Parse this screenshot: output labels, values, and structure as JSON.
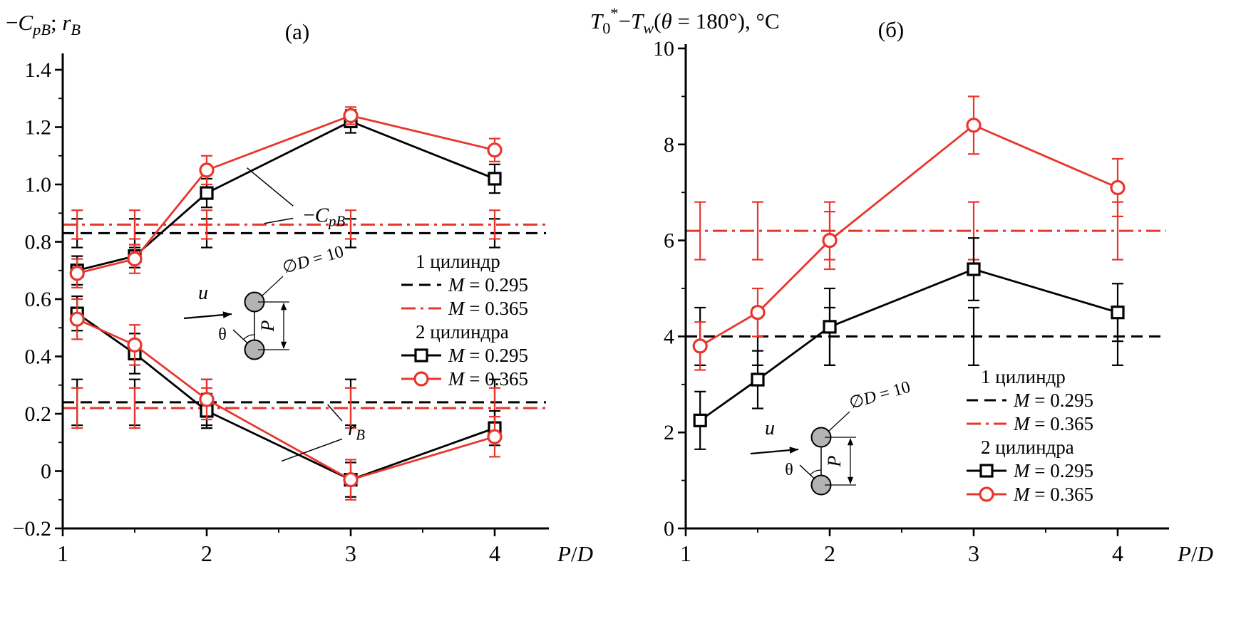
{
  "colors": {
    "black": "#000000",
    "red": "#e8362d",
    "cylinder_fill": "#b3b3b3",
    "background": "#ffffff"
  },
  "legend": {
    "group1": "1 цилиндр",
    "group2": "2 цилиндра",
    "entries": [
      {
        "group": 1,
        "style": "dashed",
        "color": "black",
        "label_text": "M = 0.295",
        "label": [
          {
            "t": "M",
            "i": 1
          },
          {
            "t": " = 0.295"
          }
        ]
      },
      {
        "group": 1,
        "style": "dashdot",
        "color": "red",
        "label_text": "M = 0.365",
        "label": [
          {
            "t": "M",
            "i": 1
          },
          {
            "t": " = 0.365"
          }
        ]
      },
      {
        "group": 2,
        "marker": "square",
        "color": "black",
        "label_text": "M = 0.295",
        "label": [
          {
            "t": "M",
            "i": 1
          },
          {
            "t": " = 0.295"
          }
        ]
      },
      {
        "group": 2,
        "marker": "circle",
        "color": "red",
        "label_text": "M = 0.365",
        "label": [
          {
            "t": "M",
            "i": 1
          },
          {
            "t": " = 0.365"
          }
        ]
      }
    ]
  },
  "inset_labels": {
    "u": [
      {
        "t": "u",
        "i": 1
      }
    ],
    "theta": [
      {
        "t": "θ"
      }
    ],
    "p": [
      {
        "t": "P",
        "i": 1
      }
    ],
    "d": [
      {
        "t": "∅"
      },
      {
        "t": "D",
        "i": 1
      },
      {
        "t": " = 10"
      }
    ],
    "d_text": "∅D = 10",
    "u_text": "u",
    "theta_text": "θ",
    "p_text": "P"
  },
  "chart_data": [
    {
      "id": "a",
      "type": "line",
      "title": "(а)",
      "ylabel": "−CpB; rB",
      "ylabel_segs": [
        {
          "t": "−"
        },
        {
          "t": "C",
          "i": 1
        },
        {
          "t": "pB",
          "sub": 1,
          "i": 1
        },
        {
          "t": "; "
        },
        {
          "t": "r",
          "i": 1
        },
        {
          "t": "B",
          "sub": 1,
          "i": 1
        }
      ],
      "xlabel": "P/D",
      "xlabel_segs": [
        {
          "t": "P",
          "i": 1
        },
        {
          "t": "/"
        },
        {
          "t": "D",
          "i": 1
        }
      ],
      "xlim": [
        1,
        4.38
      ],
      "ylim": [
        -0.2,
        1.4
      ],
      "xticks": [
        1,
        2,
        3,
        4
      ],
      "xtick_labels": [
        "1",
        "2",
        "3",
        "4"
      ],
      "xminor": [
        1.5,
        2.5,
        3.5
      ],
      "yticks": [
        -0.2,
        0,
        0.2,
        0.4,
        0.6,
        0.8,
        1.0,
        1.2,
        1.4
      ],
      "ytick_labels": [
        "−0.2",
        "0",
        "0.2",
        "0.4",
        "0.6",
        "0.8",
        "1.0",
        "1.2",
        "1.4"
      ],
      "yminor": [
        -0.1,
        0.1,
        0.3,
        0.5,
        0.7,
        0.9,
        1.1,
        1.3
      ],
      "grid": false,
      "legend_position": "right-center",
      "x": [
        1.1,
        1.5,
        2,
        3,
        4
      ],
      "series": [
        {
          "key": "cpb-2cyl-m0295",
          "name": "−CpB, 2 цилиндра, M = 0.295",
          "color": "black",
          "marker": "square",
          "values": [
            0.7,
            0.75,
            0.97,
            1.22,
            1.02
          ],
          "err": [
            0.05,
            0.04,
            0.05,
            0.04,
            0.05
          ]
        },
        {
          "key": "cpb-2cyl-m0365",
          "name": "−CpB, 2 цилиндра, M = 0.365",
          "color": "red",
          "marker": "circle",
          "values": [
            0.69,
            0.74,
            1.05,
            1.24,
            1.12
          ],
          "err": [
            0.05,
            0.05,
            0.05,
            0.03,
            0.04
          ]
        },
        {
          "key": "rb-2cyl-m0295",
          "name": "rB, 2 цилиндра, M = 0.295",
          "color": "black",
          "marker": "square",
          "values": [
            0.55,
            0.41,
            0.21,
            -0.03,
            0.15
          ],
          "err": [
            0.06,
            0.07,
            0.06,
            0.06,
            0.06
          ]
        },
        {
          "key": "rb-2cyl-m0365",
          "name": "rB, 2 цилиндра, M = 0.365",
          "color": "red",
          "marker": "circle",
          "values": [
            0.53,
            0.44,
            0.25,
            -0.03,
            0.12
          ],
          "err": [
            0.07,
            0.07,
            0.07,
            0.07,
            0.07
          ]
        }
      ],
      "hlines": [
        {
          "key": "cpb-1cyl-m0295",
          "name": "−CpB, 1 цилиндр, M = 0.295",
          "color": "black",
          "style": "dashed",
          "y": 0.83,
          "err": 0.05
        },
        {
          "key": "cpb-1cyl-m0365",
          "name": "−CpB, 1 цилиндр, M = 0.365",
          "color": "red",
          "style": "dashdot",
          "y": 0.86,
          "err": 0.05
        },
        {
          "key": "rb-1cyl-m0295",
          "name": "rB, 1 цилиндр, M = 0.295",
          "color": "black",
          "style": "dashed",
          "y": 0.24,
          "err": 0.08
        },
        {
          "key": "rb-1cyl-m0365",
          "name": "rB, 1 цилиндр, M = 0.365",
          "color": "red",
          "style": "dashdot",
          "y": 0.22,
          "err": 0.07
        }
      ],
      "annotations": [
        {
          "text": "−CpB",
          "segs": [
            {
              "t": "−"
            },
            {
              "t": "C",
              "i": 1
            },
            {
              "t": "pB",
              "sub": 1,
              "i": 1
            }
          ],
          "x": 2.67,
          "y": 0.87,
          "leaders": [
            [
              2.6,
              0.925,
              2.28,
              1.058
            ],
            [
              2.6,
              0.882,
              2.4,
              0.864
            ]
          ]
        },
        {
          "text": "rB",
          "segs": [
            {
              "t": "r",
              "i": 1
            },
            {
              "t": "B",
              "sub": 1,
              "i": 1
            }
          ],
          "x": 2.98,
          "y": 0.125,
          "leaders": [
            [
              2.94,
              0.175,
              2.84,
              0.232
            ],
            [
              2.94,
              0.112,
              2.52,
              0.035
            ]
          ]
        }
      ]
    },
    {
      "id": "b",
      "type": "line",
      "title": "(б)",
      "ylabel": "T0*−Tw(θ = 180°), °C",
      "ylabel_segs": [
        {
          "t": "T",
          "i": 1
        },
        {
          "t": "0",
          "sub": 1
        },
        {
          "t": "*",
          "sup": 1
        },
        {
          "t": "−"
        },
        {
          "t": "T",
          "i": 1
        },
        {
          "t": "w",
          "sub": 1,
          "i": 1
        },
        {
          "t": "("
        },
        {
          "t": "θ",
          "i": 1
        },
        {
          "t": " = 180°), °C"
        }
      ],
      "xlabel": "P/D",
      "xlabel_segs": [
        {
          "t": "P",
          "i": 1
        },
        {
          "t": "/"
        },
        {
          "t": "D",
          "i": 1
        }
      ],
      "xlim": [
        1,
        4.38
      ],
      "ylim": [
        0,
        10
      ],
      "xticks": [
        1,
        2,
        3,
        4
      ],
      "xtick_labels": [
        "1",
        "2",
        "3",
        "4"
      ],
      "xminor": [
        1.5,
        2.5,
        3.5
      ],
      "yticks": [
        0,
        2,
        4,
        6,
        8,
        10
      ],
      "ytick_labels": [
        "0",
        "2",
        "4",
        "6",
        "8",
        "10"
      ],
      "yminor": [
        1,
        3,
        5,
        7,
        9
      ],
      "grid": false,
      "legend_position": "right-bottom",
      "x": [
        1.1,
        1.5,
        2,
        3,
        4
      ],
      "series": [
        {
          "key": "dt-2cyl-m0295",
          "name": "T0*−Tw, 2 цилиндра, M = 0.295",
          "color": "black",
          "marker": "square",
          "values": [
            2.25,
            3.1,
            4.2,
            5.4,
            4.5
          ],
          "err": [
            0.6,
            0.6,
            0.8,
            0.65,
            0.6
          ]
        },
        {
          "key": "dt-2cyl-m0365",
          "name": "T0*−Tw, 2 цилиндра, M = 0.365",
          "color": "red",
          "marker": "circle",
          "values": [
            3.8,
            4.5,
            6.0,
            8.4,
            7.1
          ],
          "err": [
            0.5,
            0.5,
            0.6,
            0.6,
            0.6
          ]
        }
      ],
      "hlines": [
        {
          "key": "dt-1cyl-m0295",
          "name": "T0*−Tw, 1 цилиндр, M = 0.295",
          "color": "black",
          "style": "dashed",
          "y": 4.0,
          "err": 0.6
        },
        {
          "key": "dt-1cyl-m0365",
          "name": "T0*−Tw, 1 цилиндр, M = 0.365",
          "color": "red",
          "style": "dashdot",
          "y": 6.2,
          "err": 0.6
        }
      ],
      "annotations": []
    }
  ]
}
